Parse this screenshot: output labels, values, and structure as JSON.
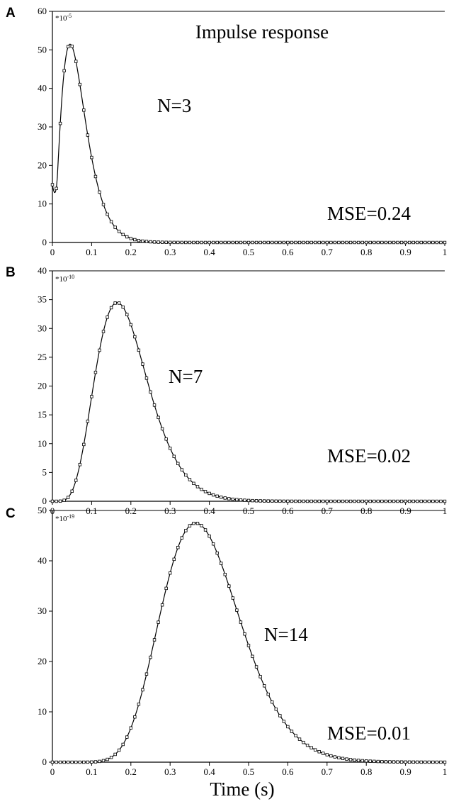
{
  "figure": {
    "x_axis_title": "Time (s)"
  },
  "chart_data": [
    {
      "type": "line",
      "panel": "A",
      "title": "Impulse response",
      "scale_factor": "*10",
      "scale_exponent": "-5",
      "annotation_n": "N=3",
      "annotation_mse": "MSE=0.24",
      "xlim": [
        0,
        1
      ],
      "ylim": [
        0,
        60
      ],
      "x_ticks": [
        "0",
        "0.1",
        "0.2",
        "0.3",
        "0.4",
        "0.5",
        "0.6",
        "0.7",
        "0.8",
        "0.9",
        "1"
      ],
      "y_ticks": [
        "0",
        "10",
        "20",
        "30",
        "40",
        "50",
        "60"
      ],
      "curve_shape": {
        "order": 3,
        "peak_time": 0.045,
        "peak_value": 51.5
      },
      "series": [
        {
          "style": "solid line"
        },
        {
          "style": "open square markers"
        }
      ]
    },
    {
      "type": "line",
      "panel": "B",
      "scale_factor": "*10",
      "scale_exponent": "-10",
      "annotation_n": "N=7",
      "annotation_mse": "MSE=0.02",
      "xlim": [
        0,
        1
      ],
      "ylim": [
        0,
        40
      ],
      "x_ticks": [
        "0",
        "0.1",
        "0.2",
        "0.3",
        "0.4",
        "0.5",
        "0.6",
        "0.7",
        "0.8",
        "0.9",
        "1"
      ],
      "y_ticks": [
        "0",
        "5",
        "10",
        "15",
        "20",
        "25",
        "30",
        "35",
        "40"
      ],
      "curve_shape": {
        "order": 7,
        "peak_time": 0.165,
        "peak_value": 34.5
      },
      "series": [
        {
          "style": "solid line"
        },
        {
          "style": "open square markers"
        }
      ]
    },
    {
      "type": "line",
      "panel": "C",
      "scale_factor": "*10",
      "scale_exponent": "-19",
      "annotation_n": "N=14",
      "annotation_mse": "MSE=0.01",
      "xlim": [
        0,
        1
      ],
      "ylim": [
        0,
        50
      ],
      "x_ticks": [
        "0",
        "0.1",
        "0.2",
        "0.3",
        "0.4",
        "0.5",
        "0.6",
        "0.7",
        "0.8",
        "0.9",
        "1"
      ],
      "y_ticks": [
        "0",
        "10",
        "20",
        "30",
        "40",
        "50"
      ],
      "curve_shape": {
        "order": 14,
        "peak_time": 0.365,
        "peak_value": 47.5
      },
      "series": [
        {
          "style": "solid line"
        },
        {
          "style": "open square markers"
        }
      ]
    }
  ]
}
